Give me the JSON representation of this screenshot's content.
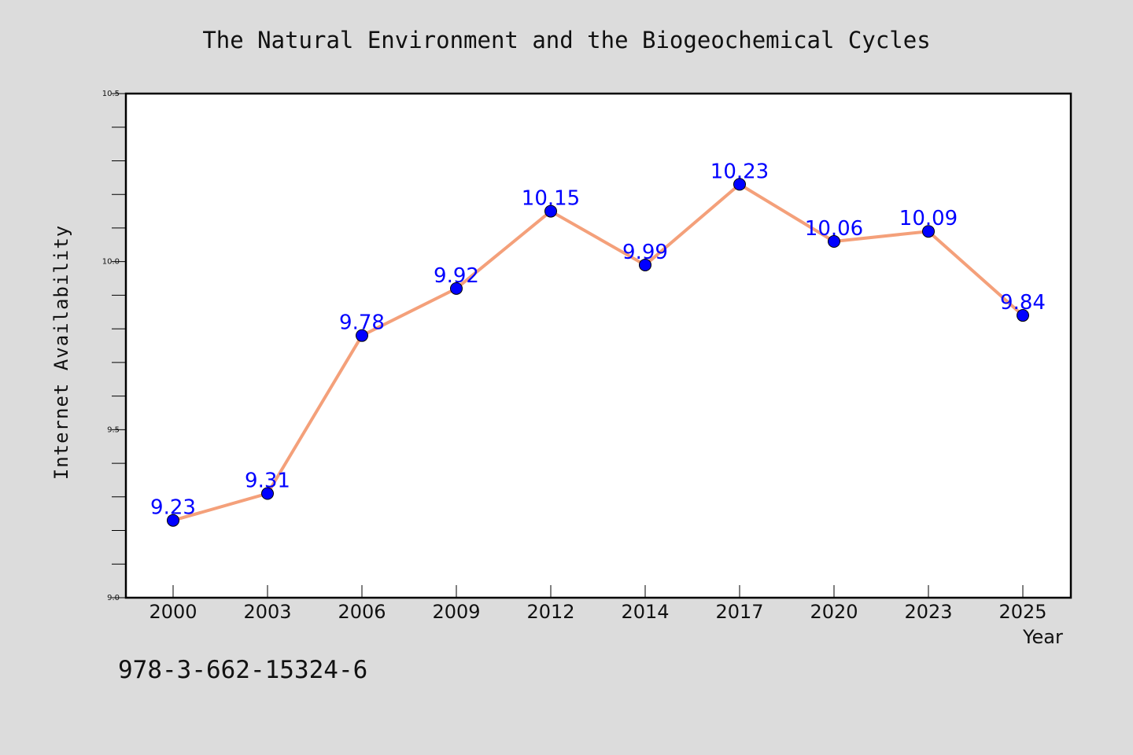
{
  "chart_data": {
    "type": "line",
    "title": "The Natural Environment and the Biogeochemical Cycles",
    "xlabel": "Year",
    "ylabel": "Internet Availability",
    "categories": [
      "2000",
      "2003",
      "2006",
      "2009",
      "2012",
      "2014",
      "2017",
      "2020",
      "2023",
      "2025"
    ],
    "series": [
      {
        "values": [
          9.23,
          9.31,
          9.78,
          9.92,
          10.15,
          9.99,
          10.23,
          10.06,
          10.09,
          9.84
        ],
        "labels": [
          "9.23",
          "9.31",
          "9.78",
          "9.92",
          "10.15",
          "9.99",
          "10.23",
          "10.06",
          "10.09",
          "9.84"
        ],
        "line_color": "#f4a07a",
        "marker_color": "#0000ff",
        "label_color": "#0000ff"
      }
    ],
    "ylim": [
      9.0,
      10.5
    ],
    "yticks": [
      "9.0",
      "9.5",
      "10.0",
      "10.5"
    ],
    "grid": false,
    "legend": "none"
  },
  "annotation": {
    "isbn": "978-3-662-15324-6"
  },
  "colors": {
    "background": "#dcdcdc",
    "plot_area": "#ffffff"
  }
}
